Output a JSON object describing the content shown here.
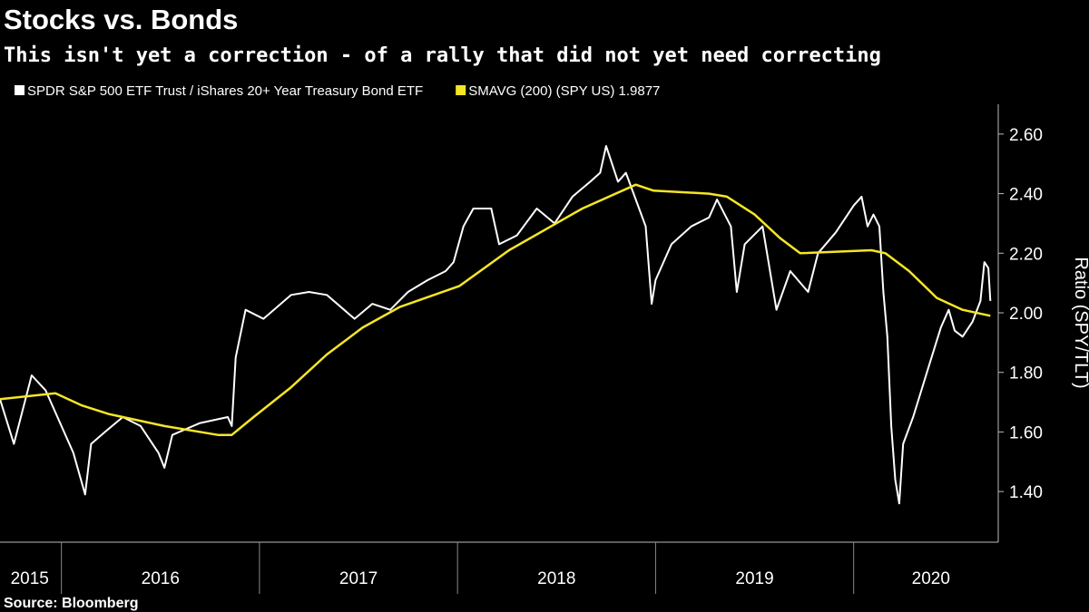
{
  "chart_data": {
    "type": "line",
    "title": "Stocks vs. Bonds",
    "subtitle": "This isn't yet a correction - of a rally that did not yet need correcting",
    "source": "Source: Bloomberg",
    "y_axis_label": "Ratio (SPY/TLT)",
    "xlim": [
      2015.69,
      2020.73
    ],
    "xticks": [
      {
        "value": 2015.84,
        "label": "2015"
      },
      {
        "value": 2016.5,
        "label": "2016"
      },
      {
        "value": 2017.5,
        "label": "2017"
      },
      {
        "value": 2018.5,
        "label": "2018"
      },
      {
        "value": 2019.5,
        "label": "2019"
      },
      {
        "value": 2020.39,
        "label": "2020"
      }
    ],
    "ylim": [
      1.23,
      2.7
    ],
    "yticks": [
      {
        "value": 1.4,
        "label": "1.40"
      },
      {
        "value": 1.6,
        "label": "1.60"
      },
      {
        "value": 1.8,
        "label": "1.80"
      },
      {
        "value": 2.0,
        "label": "2.00"
      },
      {
        "value": 2.2,
        "label": "2.20"
      },
      {
        "value": 2.4,
        "label": "2.40"
      },
      {
        "value": 2.6,
        "label": "2.60"
      }
    ],
    "legend": "top-left",
    "series": [
      {
        "name": "SPDR S&P 500 ETF Trust / iShares 20+ Year Treasury Bond ETF",
        "color": "#ffffff",
        "x": [
          2015.69,
          2015.76,
          2015.85,
          2015.92,
          2016.0,
          2016.06,
          2016.12,
          2016.15,
          2016.22,
          2016.31,
          2016.4,
          2016.49,
          2016.52,
          2016.56,
          2016.7,
          2016.84,
          2016.86,
          2016.88,
          2016.93,
          2017.02,
          2017.16,
          2017.25,
          2017.34,
          2017.48,
          2017.57,
          2017.66,
          2017.75,
          2017.85,
          2017.94,
          2017.98,
          2018.03,
          2018.08,
          2018.17,
          2018.21,
          2018.3,
          2018.4,
          2018.49,
          2018.58,
          2018.67,
          2018.72,
          2018.75,
          2018.81,
          2018.85,
          2018.9,
          2018.95,
          2018.98,
          2019.0,
          2019.08,
          2019.18,
          2019.27,
          2019.31,
          2019.38,
          2019.41,
          2019.45,
          2019.54,
          2019.61,
          2019.68,
          2019.77,
          2019.82,
          2019.91,
          2020.0,
          2020.04,
          2020.07,
          2020.1,
          2020.13,
          2020.15,
          2020.17,
          2020.19,
          2020.21,
          2020.23,
          2020.25,
          2020.3,
          2020.37,
          2020.44,
          2020.48,
          2020.51,
          2020.55,
          2020.6,
          2020.64,
          2020.66,
          2020.68,
          2020.69
        ],
        "values": [
          1.71,
          1.56,
          1.79,
          1.74,
          1.62,
          1.53,
          1.39,
          1.56,
          1.6,
          1.65,
          1.62,
          1.53,
          1.48,
          1.59,
          1.63,
          1.65,
          1.62,
          1.85,
          2.01,
          1.98,
          2.06,
          2.07,
          2.06,
          1.98,
          2.03,
          2.01,
          2.07,
          2.11,
          2.14,
          2.17,
          2.29,
          2.35,
          2.35,
          2.23,
          2.26,
          2.35,
          2.3,
          2.39,
          2.44,
          2.47,
          2.56,
          2.44,
          2.47,
          2.38,
          2.29,
          2.03,
          2.11,
          2.23,
          2.29,
          2.32,
          2.38,
          2.29,
          2.07,
          2.23,
          2.29,
          2.01,
          2.14,
          2.07,
          2.2,
          2.27,
          2.36,
          2.39,
          2.29,
          2.33,
          2.29,
          2.07,
          1.92,
          1.62,
          1.44,
          1.36,
          1.56,
          1.65,
          1.8,
          1.95,
          2.01,
          1.94,
          1.92,
          1.97,
          2.04,
          2.17,
          2.15,
          2.04
        ]
      },
      {
        "name": "SMAVG (200) (SPY US) 1.9877",
        "color": "#f5e625",
        "x": [
          2015.69,
          2015.97,
          2016.1,
          2016.24,
          2016.52,
          2016.79,
          2016.86,
          2016.97,
          2017.16,
          2017.34,
          2017.52,
          2017.71,
          2018.01,
          2018.26,
          2018.63,
          2018.9,
          2018.99,
          2019.27,
          2019.36,
          2019.5,
          2019.63,
          2019.73,
          2020.09,
          2020.16,
          2020.28,
          2020.42,
          2020.55,
          2020.69
        ],
        "values": [
          1.71,
          1.73,
          1.69,
          1.66,
          1.62,
          1.59,
          1.59,
          1.65,
          1.75,
          1.86,
          1.95,
          2.02,
          2.09,
          2.21,
          2.35,
          2.43,
          2.41,
          2.4,
          2.39,
          2.33,
          2.25,
          2.2,
          2.21,
          2.2,
          2.14,
          2.05,
          2.01,
          1.99
        ]
      }
    ]
  }
}
